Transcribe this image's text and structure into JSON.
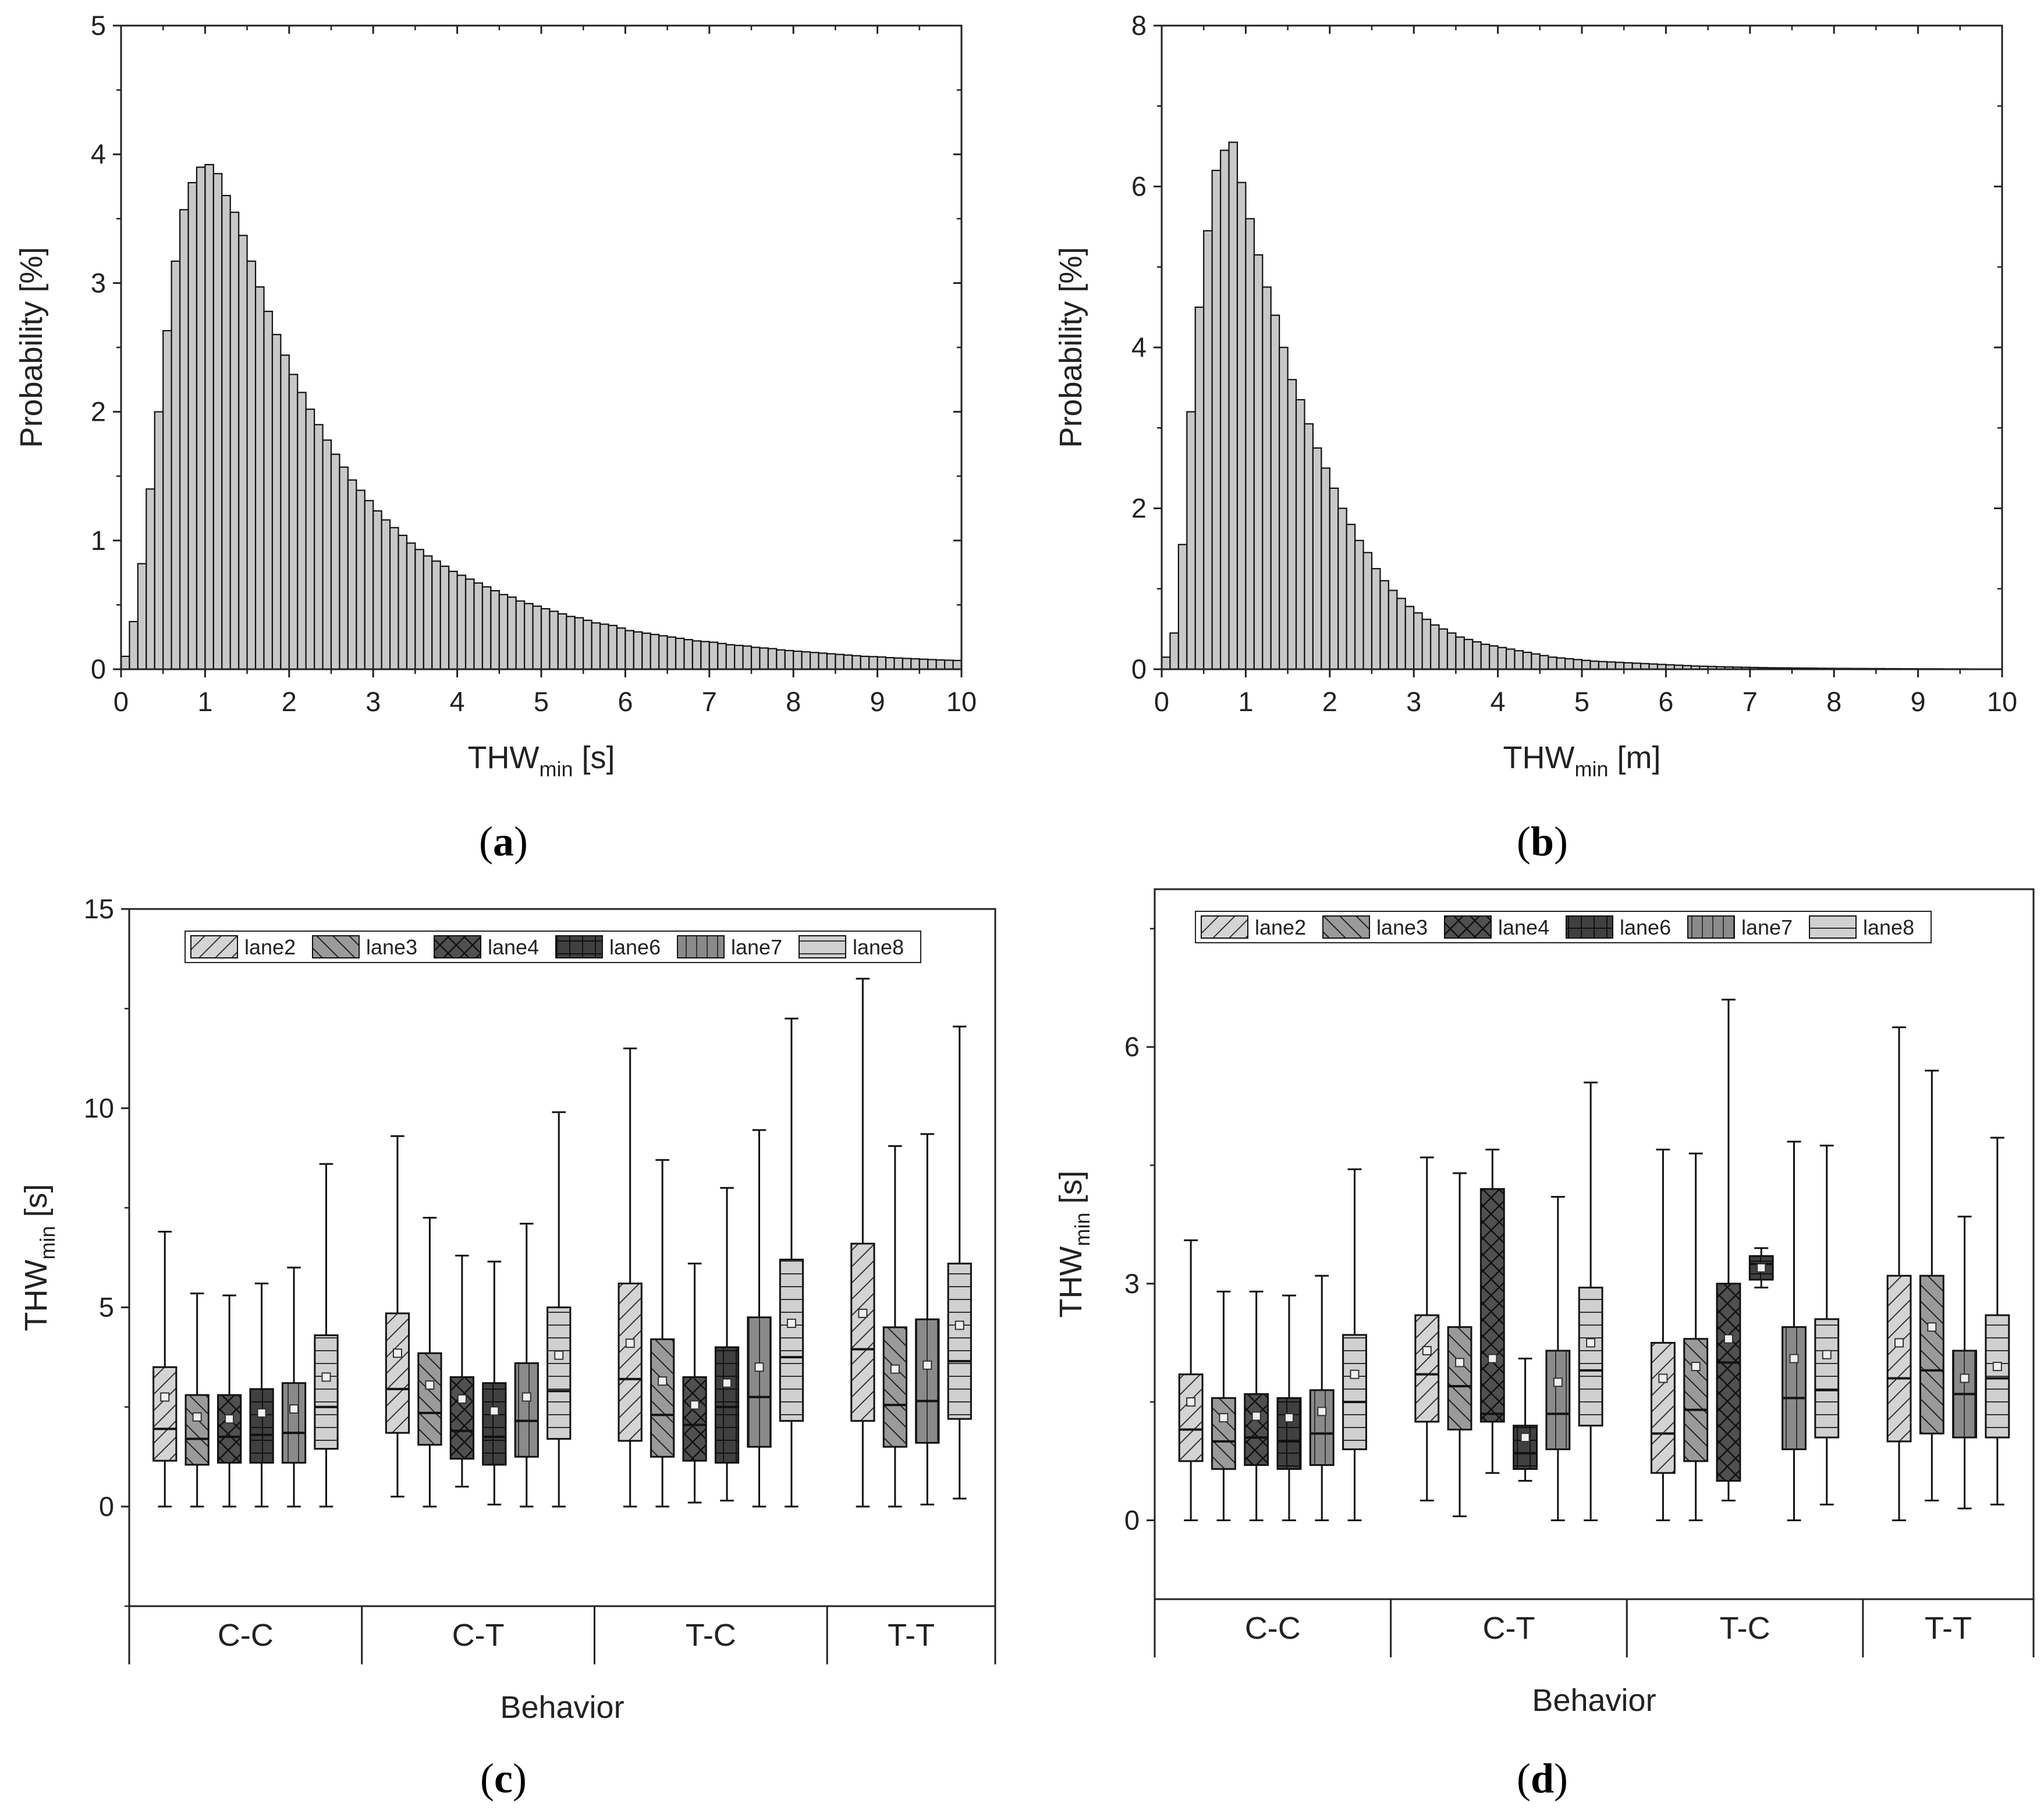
{
  "colors": {
    "hist_fill": "#c8c8c8",
    "axis": "#222222",
    "lane2": "#d4d4d4",
    "lane3": "#9a9a9a",
    "lane4": "#505050",
    "lane6": "#404040",
    "lane7": "#8a8a8a",
    "lane8": "#d0d0d0"
  },
  "chart_data": [
    {
      "id": "a",
      "type": "bar",
      "panel_label": "a",
      "xlabel": "THW",
      "xlabel_sub": "min",
      "xlabel_unit": " [s]",
      "ylabel": "Probability [%]",
      "xlim": [
        0,
        10
      ],
      "ylim": [
        0,
        5
      ],
      "xticks": [
        0,
        1,
        2,
        3,
        4,
        5,
        6,
        7,
        8,
        9,
        10
      ],
      "yticks": [
        0,
        1,
        2,
        3,
        4,
        5
      ],
      "bin_width": 0.1,
      "values": [
        0.1,
        0.37,
        0.82,
        1.4,
        2.0,
        2.63,
        3.17,
        3.57,
        3.78,
        3.9,
        3.92,
        3.85,
        3.68,
        3.55,
        3.37,
        3.17,
        2.97,
        2.78,
        2.6,
        2.44,
        2.29,
        2.15,
        2.02,
        1.9,
        1.78,
        1.67,
        1.57,
        1.47,
        1.39,
        1.31,
        1.23,
        1.16,
        1.1,
        1.04,
        0.98,
        0.93,
        0.88,
        0.84,
        0.8,
        0.76,
        0.73,
        0.7,
        0.67,
        0.64,
        0.61,
        0.58,
        0.56,
        0.53,
        0.51,
        0.49,
        0.47,
        0.45,
        0.43,
        0.41,
        0.4,
        0.38,
        0.36,
        0.35,
        0.34,
        0.32,
        0.3,
        0.29,
        0.28,
        0.27,
        0.26,
        0.25,
        0.24,
        0.23,
        0.22,
        0.215,
        0.21,
        0.2,
        0.19,
        0.185,
        0.18,
        0.17,
        0.165,
        0.16,
        0.15,
        0.145,
        0.14,
        0.135,
        0.13,
        0.125,
        0.12,
        0.115,
        0.11,
        0.105,
        0.1,
        0.098,
        0.095,
        0.09,
        0.087,
        0.084,
        0.081,
        0.078,
        0.075,
        0.072,
        0.07,
        0.068
      ]
    },
    {
      "id": "b",
      "type": "bar",
      "panel_label": "b",
      "xlabel": "THW",
      "xlabel_sub": "min",
      "xlabel_unit": " [m]",
      "ylabel": "Probability [%]",
      "xlim": [
        0,
        10
      ],
      "ylim": [
        0,
        8
      ],
      "xticks": [
        0,
        1,
        2,
        3,
        4,
        5,
        6,
        7,
        8,
        9,
        10
      ],
      "yticks": [
        0,
        2,
        4,
        6,
        8
      ],
      "bin_width": 0.1,
      "values": [
        0.15,
        0.45,
        1.55,
        3.2,
        4.5,
        5.45,
        6.2,
        6.45,
        6.55,
        6.05,
        5.6,
        5.15,
        4.75,
        4.4,
        4.0,
        3.6,
        3.35,
        3.05,
        2.75,
        2.5,
        2.25,
        2.0,
        1.8,
        1.6,
        1.45,
        1.25,
        1.1,
        0.98,
        0.88,
        0.78,
        0.7,
        0.62,
        0.55,
        0.5,
        0.45,
        0.4,
        0.37,
        0.34,
        0.31,
        0.29,
        0.27,
        0.25,
        0.23,
        0.21,
        0.19,
        0.17,
        0.15,
        0.14,
        0.13,
        0.12,
        0.11,
        0.1,
        0.095,
        0.09,
        0.085,
        0.08,
        0.075,
        0.07,
        0.065,
        0.06,
        0.055,
        0.05,
        0.045,
        0.04,
        0.037,
        0.034,
        0.031,
        0.028,
        0.026,
        0.024,
        0.022,
        0.02,
        0.018,
        0.017,
        0.016,
        0.015,
        0.014,
        0.013,
        0.012,
        0.011,
        0.01,
        0.01,
        0.009,
        0.009,
        0.008,
        0.008,
        0.007,
        0.007,
        0.006,
        0.006,
        0.005,
        0.005,
        0.005,
        0.004,
        0.004,
        0.004,
        0.003,
        0.003,
        0.003,
        0.003
      ]
    },
    {
      "id": "c",
      "type": "box",
      "panel_label": "c",
      "xlabel": "Behavior",
      "ylabel": "THW",
      "ylabel_sub": "min",
      "ylabel_unit": " [s]",
      "ylim": [
        -2.5,
        15
      ],
      "yticks": [
        0,
        5,
        10,
        15
      ],
      "legend": [
        "lane2",
        "lane3",
        "lane4",
        "lane6",
        "lane7",
        "lane8"
      ],
      "categories": [
        {
          "name": "C-C",
          "boxes": [
            {
              "lane": "lane2",
              "min": 0,
              "q1": 1.15,
              "median": 1.95,
              "q3": 3.5,
              "max": 6.9,
              "mean": 2.75
            },
            {
              "lane": "lane3",
              "min": 0,
              "q1": 1.05,
              "median": 1.7,
              "q3": 2.8,
              "max": 5.35,
              "mean": 2.25
            },
            {
              "lane": "lane4",
              "min": 0,
              "q1": 1.1,
              "median": 1.75,
              "q3": 2.8,
              "max": 5.3,
              "mean": 2.2
            },
            {
              "lane": "lane6",
              "min": 0,
              "q1": 1.1,
              "median": 1.8,
              "q3": 2.95,
              "max": 5.6,
              "mean": 2.35
            },
            {
              "lane": "lane7",
              "min": 0,
              "q1": 1.1,
              "median": 1.85,
              "q3": 3.1,
              "max": 6.0,
              "mean": 2.45
            },
            {
              "lane": "lane8",
              "min": 0,
              "q1": 1.45,
              "median": 2.5,
              "q3": 4.3,
              "max": 8.6,
              "mean": 3.25
            }
          ]
        },
        {
          "name": "C-T",
          "boxes": [
            {
              "lane": "lane2",
              "min": 0.25,
              "q1": 1.85,
              "median": 2.95,
              "q3": 4.85,
              "max": 9.3,
              "mean": 3.85
            },
            {
              "lane": "lane3",
              "min": 0,
              "q1": 1.55,
              "median": 2.35,
              "q3": 3.85,
              "max": 7.25,
              "mean": 3.05
            },
            {
              "lane": "lane4",
              "min": 0.5,
              "q1": 1.2,
              "median": 1.9,
              "q3": 3.25,
              "max": 6.3,
              "mean": 2.7
            },
            {
              "lane": "lane6",
              "min": 0.05,
              "q1": 1.05,
              "median": 1.75,
              "q3": 3.1,
              "max": 6.15,
              "mean": 2.4
            },
            {
              "lane": "lane7",
              "min": 0,
              "q1": 1.25,
              "median": 2.15,
              "q3": 3.6,
              "max": 7.1,
              "mean": 2.75
            },
            {
              "lane": "lane8",
              "min": 0,
              "q1": 1.7,
              "median": 2.9,
              "q3": 5.0,
              "max": 9.9,
              "mean": 3.8
            }
          ]
        },
        {
          "name": "T-C",
          "boxes": [
            {
              "lane": "lane2",
              "min": 0,
              "q1": 1.65,
              "median": 3.2,
              "q3": 5.6,
              "max": 11.5,
              "mean": 4.1
            },
            {
              "lane": "lane3",
              "min": 0,
              "q1": 1.25,
              "median": 2.3,
              "q3": 4.2,
              "max": 8.7,
              "mean": 3.15
            },
            {
              "lane": "lane4",
              "min": 0.1,
              "q1": 1.15,
              "median": 2.05,
              "q3": 3.25,
              "max": 6.1,
              "mean": 2.55
            },
            {
              "lane": "lane6",
              "min": 0.15,
              "q1": 1.1,
              "median": 2.5,
              "q3": 4.0,
              "max": 8.0,
              "mean": 3.1
            },
            {
              "lane": "lane7",
              "min": 0,
              "q1": 1.5,
              "median": 2.75,
              "q3": 4.75,
              "max": 9.45,
              "mean": 3.5
            },
            {
              "lane": "lane8",
              "min": 0,
              "q1": 2.15,
              "median": 3.75,
              "q3": 6.2,
              "max": 12.25,
              "mean": 4.6
            }
          ]
        },
        {
          "name": "T-T",
          "boxes": [
            {
              "lane": "lane2",
              "min": 0,
              "q1": 2.15,
              "median": 3.95,
              "q3": 6.6,
              "max": 13.25,
              "mean": 4.85
            },
            {
              "lane": "lane3",
              "min": 0,
              "q1": 1.5,
              "median": 2.55,
              "q3": 4.5,
              "max": 9.05,
              "mean": 3.45
            },
            {
              "lane": "lane7",
              "min": 0.05,
              "q1": 1.6,
              "median": 2.65,
              "q3": 4.7,
              "max": 9.35,
              "mean": 3.55
            },
            {
              "lane": "lane8",
              "min": 0.2,
              "q1": 2.2,
              "median": 3.65,
              "q3": 6.1,
              "max": 12.05,
              "mean": 4.55
            }
          ]
        }
      ]
    },
    {
      "id": "d",
      "type": "box",
      "panel_label": "d",
      "xlabel": "Behavior",
      "ylabel": "THW",
      "ylabel_sub": "min",
      "ylabel_unit": " [s]",
      "ylim": [
        -1,
        8
      ],
      "yticks": [
        0,
        3,
        6
      ],
      "legend": [
        "lane2",
        "lane3",
        "lane4",
        "lane6",
        "lane7",
        "lane8"
      ],
      "categories": [
        {
          "name": "C-C",
          "boxes": [
            {
              "lane": "lane2",
              "min": 0,
              "q1": 0.75,
              "median": 1.15,
              "q3": 1.85,
              "max": 3.55,
              "mean": 1.5
            },
            {
              "lane": "lane3",
              "min": 0,
              "q1": 0.65,
              "median": 1.0,
              "q3": 1.55,
              "max": 2.9,
              "mean": 1.3
            },
            {
              "lane": "lane4",
              "min": 0,
              "q1": 0.7,
              "median": 1.05,
              "q3": 1.6,
              "max": 2.9,
              "mean": 1.32
            },
            {
              "lane": "lane6",
              "min": 0,
              "q1": 0.65,
              "median": 1.0,
              "q3": 1.55,
              "max": 2.85,
              "mean": 1.3
            },
            {
              "lane": "lane7",
              "min": 0,
              "q1": 0.7,
              "median": 1.1,
              "q3": 1.65,
              "max": 3.1,
              "mean": 1.38
            },
            {
              "lane": "lane8",
              "min": 0,
              "q1": 0.9,
              "median": 1.5,
              "q3": 2.35,
              "max": 4.45,
              "mean": 1.85
            }
          ]
        },
        {
          "name": "C-T",
          "boxes": [
            {
              "lane": "lane2",
              "min": 0.25,
              "q1": 1.25,
              "median": 1.85,
              "q3": 2.6,
              "max": 4.6,
              "mean": 2.15
            },
            {
              "lane": "lane3",
              "min": 0.05,
              "q1": 1.15,
              "median": 1.7,
              "q3": 2.45,
              "max": 4.4,
              "mean": 2.0
            },
            {
              "lane": "lane4",
              "min": 0.6,
              "q1": 1.25,
              "median": 1.35,
              "q3": 4.2,
              "max": 4.7,
              "mean": 2.05
            },
            {
              "lane": "lane6",
              "min": 0.5,
              "q1": 0.65,
              "median": 0.85,
              "q3": 1.2,
              "max": 2.05,
              "mean": 1.05
            },
            {
              "lane": "lane7",
              "min": 0,
              "q1": 0.9,
              "median": 1.35,
              "q3": 2.15,
              "max": 4.1,
              "mean": 1.75
            },
            {
              "lane": "lane8",
              "min": 0,
              "q1": 1.2,
              "median": 1.9,
              "q3": 2.95,
              "max": 5.55,
              "mean": 2.25
            }
          ]
        },
        {
          "name": "T-C",
          "boxes": [
            {
              "lane": "lane2",
              "min": 0,
              "q1": 0.6,
              "median": 1.1,
              "q3": 2.25,
              "max": 4.7,
              "mean": 1.8
            },
            {
              "lane": "lane3",
              "min": 0,
              "q1": 0.75,
              "median": 1.4,
              "q3": 2.3,
              "max": 4.65,
              "mean": 1.95
            },
            {
              "lane": "lane4",
              "min": 0.25,
              "q1": 0.5,
              "median": 2.0,
              "q3": 3.0,
              "max": 6.6,
              "mean": 2.3
            },
            {
              "lane": "lane6",
              "min": 2.95,
              "q1": 3.05,
              "median": 3.25,
              "q3": 3.35,
              "max": 3.45,
              "mean": 3.2
            },
            {
              "lane": "lane7",
              "min": 0,
              "q1": 0.9,
              "median": 1.55,
              "q3": 2.45,
              "max": 4.8,
              "mean": 2.05
            },
            {
              "lane": "lane8",
              "min": 0.2,
              "q1": 1.05,
              "median": 1.65,
              "q3": 2.55,
              "max": 4.75,
              "mean": 2.1
            }
          ]
        },
        {
          "name": "T-T",
          "boxes": [
            {
              "lane": "lane2",
              "min": 0,
              "q1": 1.0,
              "median": 1.8,
              "q3": 3.1,
              "max": 6.25,
              "mean": 2.25
            },
            {
              "lane": "lane3",
              "min": 0.25,
              "q1": 1.1,
              "median": 1.9,
              "q3": 3.1,
              "max": 5.7,
              "mean": 2.45
            },
            {
              "lane": "lane7",
              "min": 0.15,
              "q1": 1.05,
              "median": 1.6,
              "q3": 2.15,
              "max": 3.85,
              "mean": 1.8
            },
            {
              "lane": "lane8",
              "min": 0.2,
              "q1": 1.05,
              "median": 1.8,
              "q3": 2.6,
              "max": 4.85,
              "mean": 1.95
            }
          ]
        }
      ]
    }
  ]
}
